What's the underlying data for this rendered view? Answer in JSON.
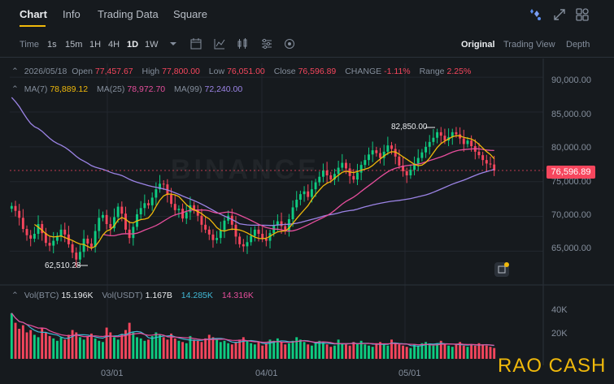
{
  "tabs": [
    {
      "label": "Chart",
      "active": true
    },
    {
      "label": "Info",
      "active": false
    },
    {
      "label": "Trading Data",
      "active": false
    },
    {
      "label": "Square",
      "active": false
    }
  ],
  "top_icons": [
    "ai-sparkle-icon",
    "expand-icon",
    "grid-layout-icon"
  ],
  "toolbar": {
    "time_label": "Time",
    "intervals": [
      {
        "label": "1s"
      },
      {
        "label": "15m"
      },
      {
        "label": "1H"
      },
      {
        "label": "4H"
      },
      {
        "label": "1D",
        "active": true
      },
      {
        "label": "1W"
      }
    ],
    "icons": [
      "dropdown-caret-icon",
      "calendar-icon",
      "indicator-chart-icon",
      "candle-type-icon",
      "settings-sliders-icon",
      "target-icon"
    ],
    "views": [
      {
        "label": "Original",
        "active": true
      },
      {
        "label": "Trading View"
      },
      {
        "label": "Depth"
      }
    ]
  },
  "ohlc": {
    "date": "2026/05/18",
    "open_label": "Open",
    "open": "77,457.67",
    "high_label": "High",
    "high": "77,800.00",
    "low_label": "Low",
    "low": "76,051.00",
    "close_label": "Close",
    "close": "76,596.89",
    "change_label": "CHANGE",
    "change": "-1.11%",
    "range_label": "Range",
    "range": "2.25%"
  },
  "ma": {
    "ma7_label": "MA(7)",
    "ma7": "78,889.12",
    "ma25_label": "MA(25)",
    "ma25": "78,972.70",
    "ma99_label": "MA(99)",
    "ma99": "72,240.00"
  },
  "volume_info": {
    "btc_label": "Vol(BTC)",
    "btc": "15.196K",
    "usdt_label": "Vol(USDT)",
    "usdt": "1.167B",
    "v1": "14.285K",
    "v2": "14.316K"
  },
  "price_tag": "76,596.89",
  "overlay_text": "RAO CASH",
  "watermark": "BINANCE",
  "colors": {
    "up": "#0ecb81",
    "down": "#f6465d",
    "ma7": "#f0b90b",
    "ma25": "#e64e9c",
    "ma99": "#9c84e6",
    "accent": "#f0b90b"
  },
  "chart_data": {
    "type": "candlestick",
    "y_ticks": [
      "90,000.00",
      "85,000.00",
      "80,000.00",
      "75,000.00",
      "70,000.00",
      "65,000.00"
    ],
    "ylim": [
      60500,
      92000
    ],
    "x_ticks": [
      "03/01",
      "04/01",
      "05/01"
    ],
    "volume_ticks": [
      "40K",
      "20K"
    ],
    "annotations": [
      {
        "text": "82,850.00",
        "kind": "max"
      },
      {
        "text": "62,510.28",
        "kind": "min"
      }
    ],
    "last_price": 76596.89,
    "closes": [
      71500,
      70800,
      69800,
      68200,
      67300,
      66800,
      67500,
      68900,
      67600,
      66200,
      65800,
      66500,
      67200,
      68100,
      67400,
      66000,
      64800,
      63800,
      64900,
      66800,
      66100,
      65600,
      67900,
      69800,
      70200,
      68900,
      68300,
      69900,
      71400,
      70400,
      68100,
      66900,
      68500,
      70300,
      71200,
      71900,
      71600,
      72700,
      73900,
      74700,
      74600,
      73100,
      71800,
      70900,
      71100,
      69700,
      70600,
      71600,
      70900,
      70100,
      68800,
      68100,
      67400,
      66600,
      66900,
      68000,
      69400,
      70100,
      68800,
      67100,
      66000,
      65700,
      66300,
      67200,
      68100,
      67500,
      66800,
      66500,
      67600,
      68700,
      69300,
      68600,
      67900,
      69600,
      71300,
      72400,
      73200,
      73600,
      72800,
      73900,
      74900,
      75700,
      76600,
      75900,
      75300,
      76100,
      77000,
      77700,
      76900,
      75800,
      75300,
      76300,
      77400,
      78100,
      78900,
      79500,
      79100,
      78400,
      79300,
      80200,
      79700,
      78600,
      77300,
      76500,
      75900,
      76700,
      77600,
      78400,
      79200,
      80000,
      80700,
      81300,
      82100,
      81600,
      80900,
      81400,
      82100,
      81800,
      81200,
      80400,
      80900,
      80100,
      79300,
      78800,
      78100,
      77600,
      77460,
      76597
    ],
    "volumes": [
      38,
      30,
      25,
      28,
      22,
      24,
      20,
      18,
      26,
      22,
      19,
      17,
      15,
      18,
      16,
      20,
      24,
      22,
      18,
      16,
      19,
      21,
      17,
      15,
      14,
      26,
      22,
      18,
      16,
      20,
      24,
      30,
      22,
      18,
      17,
      15,
      16,
      19,
      22,
      20,
      18,
      16,
      21,
      17,
      15,
      14,
      13,
      19,
      16,
      15,
      14,
      17,
      20,
      18,
      16,
      14,
      15,
      13,
      12,
      14,
      16,
      18,
      15,
      13,
      12,
      14,
      11,
      13,
      16,
      15,
      17,
      14,
      12,
      13,
      15,
      18,
      16,
      14,
      12,
      11,
      13,
      15,
      14,
      12,
      10,
      11,
      16,
      13,
      12,
      11,
      14,
      13,
      15,
      12,
      11,
      10,
      13,
      14,
      12,
      11,
      16,
      13,
      12,
      11,
      10,
      9,
      12,
      11,
      13,
      14,
      12,
      11,
      13,
      15,
      12,
      11,
      10,
      12,
      14,
      11,
      10,
      12,
      11,
      13,
      12,
      11,
      10,
      9
    ]
  }
}
